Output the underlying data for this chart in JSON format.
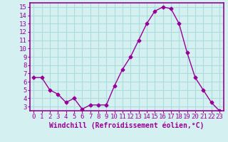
{
  "x": [
    0,
    1,
    2,
    3,
    4,
    5,
    6,
    7,
    8,
    9,
    10,
    11,
    12,
    13,
    14,
    15,
    16,
    17,
    18,
    19,
    20,
    21,
    22,
    23
  ],
  "y": [
    6.5,
    6.5,
    5.0,
    4.5,
    3.5,
    4.0,
    2.7,
    3.2,
    3.2,
    3.2,
    5.5,
    7.5,
    9.0,
    11.0,
    13.0,
    14.5,
    15.0,
    14.8,
    13.0,
    9.5,
    6.5,
    5.0,
    3.5,
    2.5
  ],
  "line_color": "#990099",
  "marker": "D",
  "marker_size": 2.5,
  "bg_color": "#d5f0f0",
  "grid_color": "#aadddd",
  "xlabel": "Windchill (Refroidissement éolien,°C)",
  "xlim": [
    -0.5,
    23.5
  ],
  "ylim": [
    2.5,
    15.5
  ],
  "yticks": [
    3,
    4,
    5,
    6,
    7,
    8,
    9,
    10,
    11,
    12,
    13,
    14,
    15
  ],
  "xticks": [
    0,
    1,
    2,
    3,
    4,
    5,
    6,
    7,
    8,
    9,
    10,
    11,
    12,
    13,
    14,
    15,
    16,
    17,
    18,
    19,
    20,
    21,
    22,
    23
  ],
  "axis_color": "#990099",
  "tick_label_color": "#990099",
  "xlabel_color": "#990099",
  "xlabel_fontsize": 7.0,
  "tick_fontsize": 6.5,
  "linewidth": 1.0
}
